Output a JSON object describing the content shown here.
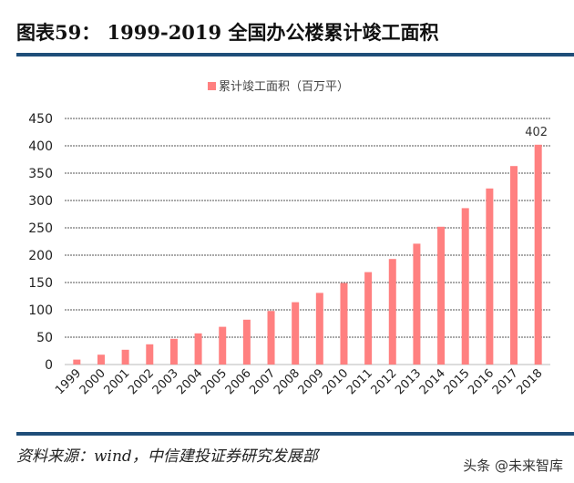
{
  "header": {
    "title": "图表59：  1999-2019 全国办公楼累计竣工面积"
  },
  "footer": {
    "source": "资料来源：wind，中信建投证券研究发展部",
    "watermark": "头条 @未来智库"
  },
  "colors": {
    "bar": "#ff8080",
    "rule": "#1f4e79",
    "grid": "#555555"
  },
  "chart_data": {
    "type": "bar",
    "title": "",
    "legend": {
      "label": "累计竣工面积（百万平）",
      "placement": "top"
    },
    "categories": [
      "1999",
      "2000",
      "2001",
      "2002",
      "2003",
      "2004",
      "2005",
      "2006",
      "2007",
      "2008",
      "2009",
      "2010",
      "2011",
      "2012",
      "2013",
      "2014",
      "2015",
      "2016",
      "2017",
      "2018"
    ],
    "series": [
      {
        "name": "累计竣工面积（百万平）",
        "values": [
          9,
          18,
          27,
          37,
          47,
          57,
          69,
          82,
          98,
          114,
          131,
          149,
          169,
          193,
          221,
          252,
          286,
          322,
          363,
          402
        ]
      }
    ],
    "data_labels": [
      {
        "category": "2018",
        "text": "402"
      }
    ],
    "ylim": [
      0,
      450
    ],
    "yticks": [
      0,
      50,
      100,
      150,
      200,
      250,
      300,
      350,
      400,
      450
    ],
    "grid": "horizontal dashed",
    "xlabel": "",
    "ylabel": ""
  }
}
